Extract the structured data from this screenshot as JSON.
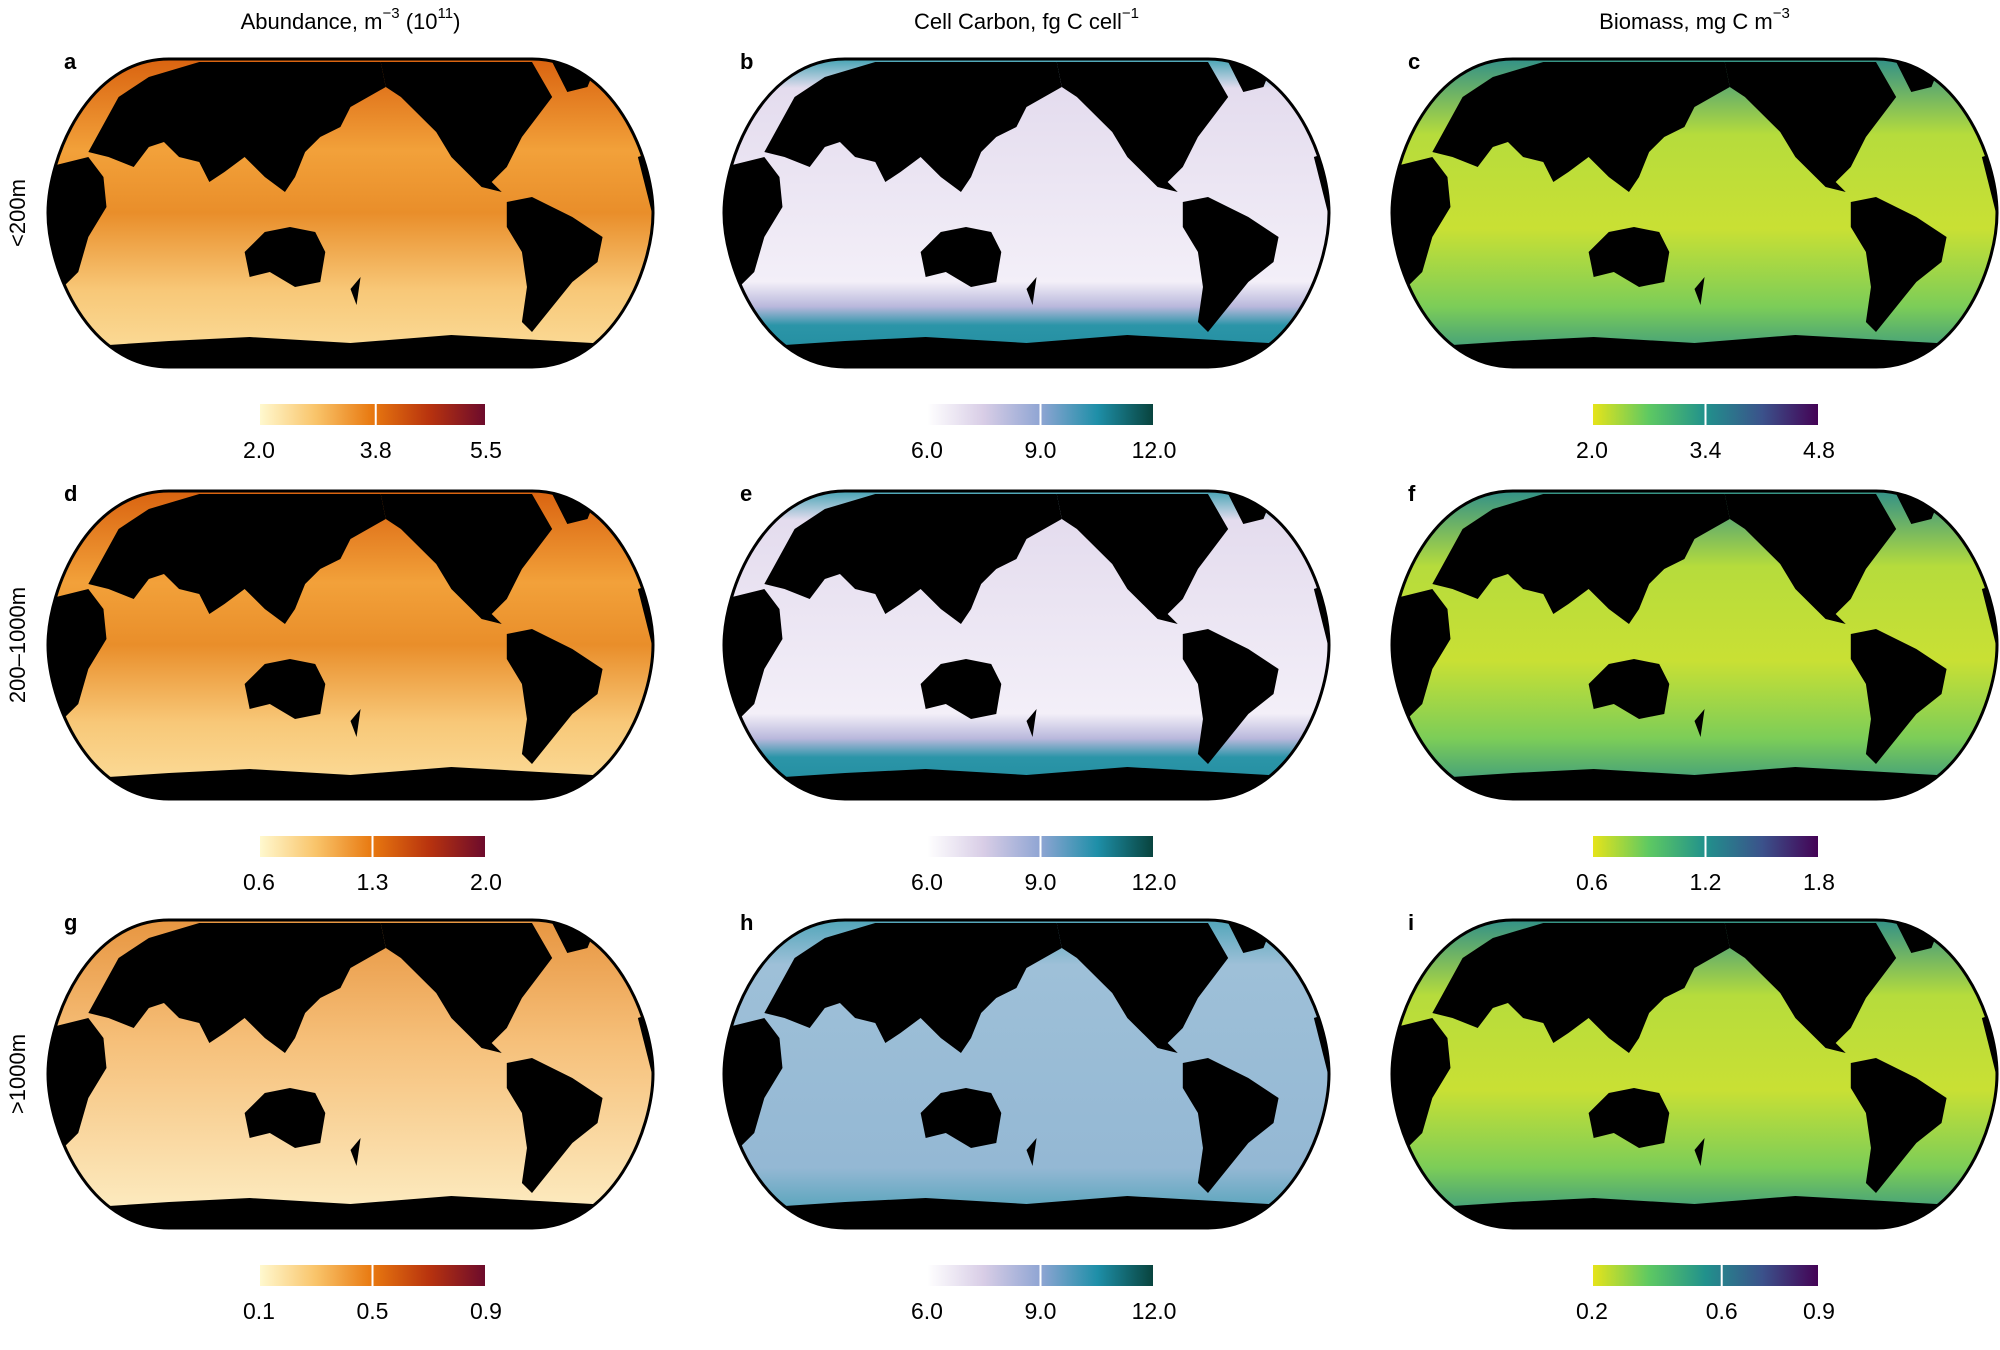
{
  "column_titles": [
    [
      "Abundance, m",
      "−3",
      " (10",
      "11",
      ")"
    ],
    [
      "Cell Carbon, fg C cell",
      "−1"
    ],
    [
      "Biomass, mg C m",
      "−3"
    ]
  ],
  "row_labels": [
    "<200m",
    "200–1000m",
    ">1000m"
  ],
  "panels": [
    {
      "letter": "a",
      "colorbar": {
        "colors": [
          "#fff9d0",
          "#f9c46a",
          "#e8780f",
          "#b8330e",
          "#6b0a2c"
        ],
        "range": [
          2.0,
          5.5
        ],
        "ticks": [
          {
            "value": 2.0,
            "label": "2.0"
          },
          {
            "value": 3.8,
            "label": "3.8"
          },
          {
            "value": 5.5,
            "label": "5.5"
          }
        ]
      }
    },
    {
      "letter": "b",
      "colorbar": {
        "colors": [
          "#ffffff",
          "#d8cde6",
          "#8fa5d3",
          "#1e8fa8",
          "#08423c"
        ],
        "range": [
          6.0,
          12.0
        ],
        "ticks": [
          {
            "value": 6.0,
            "label": "6.0"
          },
          {
            "value": 9.0,
            "label": "9.0"
          },
          {
            "value": 12.0,
            "label": "12.0"
          }
        ]
      }
    },
    {
      "letter": "c",
      "colorbar": {
        "colors": [
          "#e8e419",
          "#5ec962",
          "#21918c",
          "#3b528b",
          "#440154"
        ],
        "range": [
          2.0,
          4.8
        ],
        "ticks": [
          {
            "value": 2.0,
            "label": "2.0"
          },
          {
            "value": 3.4,
            "label": "3.4"
          },
          {
            "value": 4.8,
            "label": "4.8"
          }
        ]
      }
    },
    {
      "letter": "d",
      "colorbar": {
        "colors": [
          "#fff9d0",
          "#f9c46a",
          "#e8780f",
          "#b8330e",
          "#6b0a2c"
        ],
        "range": [
          0.6,
          2.0
        ],
        "ticks": [
          {
            "value": 0.6,
            "label": "0.6"
          },
          {
            "value": 1.3,
            "label": "1.3"
          },
          {
            "value": 2.0,
            "label": "2.0"
          }
        ]
      }
    },
    {
      "letter": "e",
      "colorbar": {
        "colors": [
          "#ffffff",
          "#d8cde6",
          "#8fa5d3",
          "#1e8fa8",
          "#08423c"
        ],
        "range": [
          6.0,
          12.0
        ],
        "ticks": [
          {
            "value": 6.0,
            "label": "6.0"
          },
          {
            "value": 9.0,
            "label": "9.0"
          },
          {
            "value": 12.0,
            "label": "12.0"
          }
        ]
      }
    },
    {
      "letter": "f",
      "colorbar": {
        "colors": [
          "#e8e419",
          "#5ec962",
          "#21918c",
          "#3b528b",
          "#440154"
        ],
        "range": [
          0.6,
          1.8
        ],
        "ticks": [
          {
            "value": 0.6,
            "label": "0.6"
          },
          {
            "value": 1.2,
            "label": "1.2"
          },
          {
            "value": 1.8,
            "label": "1.8"
          }
        ]
      }
    },
    {
      "letter": "g",
      "colorbar": {
        "colors": [
          "#fff9d0",
          "#f9c46a",
          "#e8780f",
          "#b8330e",
          "#6b0a2c"
        ],
        "range": [
          0.1,
          0.9
        ],
        "ticks": [
          {
            "value": 0.1,
            "label": "0.1"
          },
          {
            "value": 0.5,
            "label": "0.5"
          },
          {
            "value": 0.9,
            "label": "0.9"
          }
        ]
      }
    },
    {
      "letter": "h",
      "colorbar": {
        "colors": [
          "#ffffff",
          "#d8cde6",
          "#8fa5d3",
          "#1e8fa8",
          "#08423c"
        ],
        "range": [
          6.0,
          12.0
        ],
        "ticks": [
          {
            "value": 6.0,
            "label": "6.0"
          },
          {
            "value": 9.0,
            "label": "9.0"
          },
          {
            "value": 12.0,
            "label": "12.0"
          }
        ]
      }
    },
    {
      "letter": "i",
      "colorbar": {
        "colors": [
          "#e8e419",
          "#5ec962",
          "#21918c",
          "#3b528b",
          "#440154"
        ],
        "range": [
          0.2,
          0.9
        ],
        "ticks": [
          {
            "value": 0.2,
            "label": "0.2"
          },
          {
            "value": 0.6,
            "label": "0.6"
          },
          {
            "value": 0.9,
            "label": "0.9"
          }
        ]
      }
    }
  ]
}
